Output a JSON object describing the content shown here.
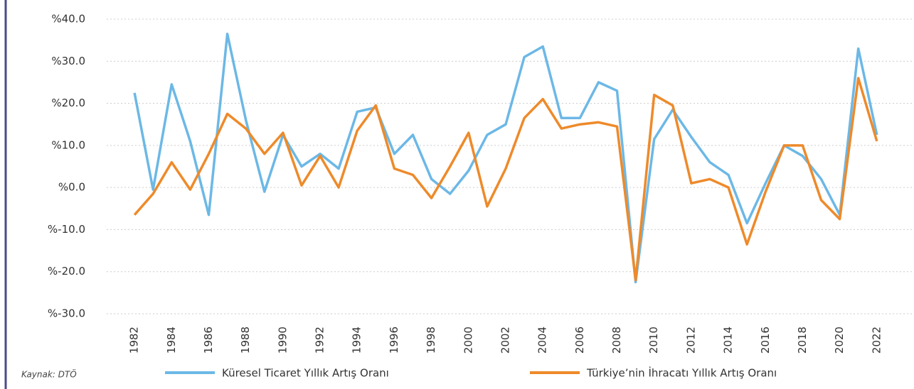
{
  "chart_data": {
    "type": "line",
    "source": "Kaynak: DTÖ",
    "x": [
      1982,
      1983,
      1984,
      1985,
      1986,
      1987,
      1988,
      1989,
      1990,
      1991,
      1992,
      1993,
      1994,
      1995,
      1996,
      1997,
      1998,
      1999,
      2000,
      2001,
      2002,
      2003,
      2004,
      2005,
      2006,
      2007,
      2008,
      2009,
      2010,
      2011,
      2012,
      2013,
      2014,
      2015,
      2016,
      2017,
      2018,
      2019,
      2020,
      2021,
      2022
    ],
    "series": [
      {
        "name": "Küresel Ticaret Yıllık Artış Oranı",
        "color": "#6cb8e6",
        "values": [
          22.5,
          -0.5,
          24.5,
          11,
          -6.5,
          36.5,
          16,
          -1,
          12.5,
          5,
          8,
          4.5,
          18,
          19,
          8,
          12.5,
          2,
          -1.5,
          4,
          12.5,
          15,
          31,
          33.5,
          16.5,
          16.5,
          25,
          23,
          -22.5,
          11.5,
          18.5,
          12,
          6,
          3,
          -8.5,
          1,
          10,
          7.5,
          2,
          -6.5,
          33,
          12.5
        ]
      },
      {
        "name": "Türkiye’nin İhracatı Yıllık Artış Oranı",
        "color": "#ee8a2a",
        "values": [
          -6.5,
          -1.5,
          6,
          -0.5,
          8,
          17.5,
          14,
          8,
          13,
          0.5,
          7.5,
          0,
          13.5,
          19.5,
          4.5,
          3,
          -2.5,
          5,
          13,
          -4.5,
          4.5,
          16.5,
          21,
          14,
          15,
          15.5,
          14.5,
          -22,
          22,
          19.5,
          1,
          2,
          0,
          -13.5,
          -1,
          10,
          10,
          -3,
          -7.5,
          26,
          11
        ]
      }
    ],
    "xlim": [
      1980.5,
      2024
    ],
    "xticks": [
      1982,
      1984,
      1986,
      1988,
      1990,
      1992,
      1994,
      1996,
      1998,
      2000,
      2002,
      2004,
      2006,
      2008,
      2010,
      2012,
      2014,
      2016,
      2018,
      2020,
      2022
    ],
    "ylim": [
      -30,
      40
    ],
    "yticks": [
      {
        "value": -30,
        "label": "%-30.0"
      },
      {
        "value": -20,
        "label": "%-20.0"
      },
      {
        "value": -10,
        "label": "%-10.0"
      },
      {
        "value": 0,
        "label": "%0.0"
      },
      {
        "value": 10,
        "label": "%10.0"
      },
      {
        "value": 20,
        "label": "%20.0"
      },
      {
        "value": 30,
        "label": "%30.0"
      },
      {
        "value": 40,
        "label": "%40.0"
      }
    ],
    "grid": true,
    "legend": "bottom"
  }
}
